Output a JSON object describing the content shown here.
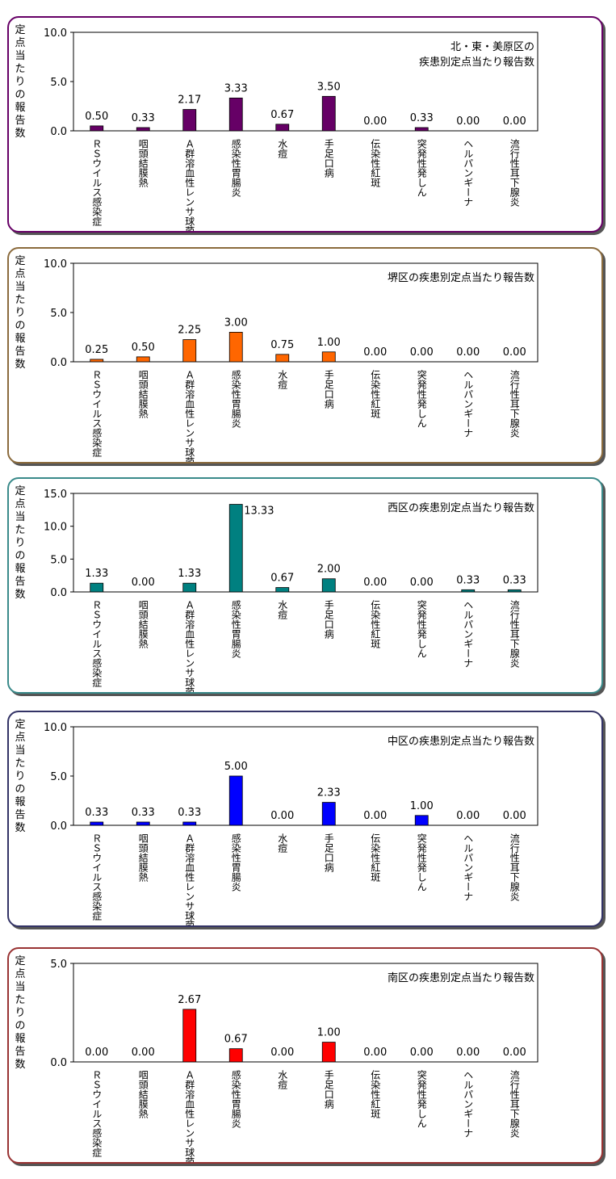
{
  "y_axis_title": "定点当たりの報告数",
  "chart_data": [
    {
      "type": "bar",
      "title": "北・東・美原区の\n疾患別定点当たり報告数",
      "color": "#660066",
      "border_color": "#660066",
      "ylim": [
        0,
        10
      ],
      "yticks": [
        "0.0",
        "5.0",
        "10.0"
      ],
      "categories": [
        "ＲＳウイルス感染症",
        "咽頭結膜熱",
        "Ａ群溶血性レンサ球菌咽頭炎",
        "感染性胃腸炎",
        "水痘",
        "手足口病",
        "伝染性紅斑",
        "突発性発しん",
        "ヘルパンギーナ",
        "流行性耳下腺炎"
      ],
      "values": [
        0.5,
        0.33,
        2.17,
        3.33,
        0.67,
        3.5,
        0.0,
        0.33,
        0.0,
        0.0
      ],
      "labels": [
        "0.50",
        "0.33",
        "2.17",
        "3.33",
        "0.67",
        "3.50",
        "0.00",
        "0.33",
        "0.00",
        "0.00"
      ]
    },
    {
      "type": "bar",
      "title": "堺区の疾患別定点当たり報告数",
      "color": "#ff6600",
      "border_color": "#8b6b3d",
      "ylim": [
        0,
        10
      ],
      "yticks": [
        "0.0",
        "5.0",
        "10.0"
      ],
      "categories": [
        "ＲＳウイルス感染症",
        "咽頭結膜熱",
        "Ａ群溶血性レンサ球菌咽頭炎",
        "感染性胃腸炎",
        "水痘",
        "手足口病",
        "伝染性紅斑",
        "突発性発しん",
        "ヘルパンギーナ",
        "流行性耳下腺炎"
      ],
      "values": [
        0.25,
        0.5,
        2.25,
        3.0,
        0.75,
        1.0,
        0.0,
        0.0,
        0.0,
        0.0
      ],
      "labels": [
        "0.25",
        "0.50",
        "2.25",
        "3.00",
        "0.75",
        "1.00",
        "0.00",
        "0.00",
        "0.00",
        "0.00"
      ]
    },
    {
      "type": "bar",
      "title": "西区の疾患別定点当たり報告数",
      "color": "#008080",
      "border_color": "#3a8a8a",
      "ylim": [
        0,
        15
      ],
      "yticks": [
        "0.0",
        "5.0",
        "10.0",
        "15.0"
      ],
      "categories": [
        "ＲＳウイルス感染症",
        "咽頭結膜熱",
        "Ａ群溶血性レンサ球菌咽頭炎",
        "感染性胃腸炎",
        "水痘",
        "手足口病",
        "伝染性紅斑",
        "突発性発しん",
        "ヘルパンギーナ",
        "流行性耳下腺炎"
      ],
      "values": [
        1.33,
        0.0,
        1.33,
        13.33,
        0.67,
        2.0,
        0.0,
        0.0,
        0.33,
        0.33
      ],
      "labels": [
        "1.33",
        "0.00",
        "1.33",
        "13.33",
        "0.67",
        "2.00",
        "0.00",
        "0.00",
        "0.33",
        "0.33"
      ]
    },
    {
      "type": "bar",
      "title": "中区の疾患別定点当たり報告数",
      "color": "#0000ff",
      "border_color": "#333366",
      "ylim": [
        0,
        10
      ],
      "yticks": [
        "0.0",
        "5.0",
        "10.0"
      ],
      "categories": [
        "ＲＳウイルス感染症",
        "咽頭結膜熱",
        "Ａ群溶血性レンサ球菌咽頭炎",
        "感染性胃腸炎",
        "水痘",
        "手足口病",
        "伝染性紅斑",
        "突発性発しん",
        "ヘルパンギーナ",
        "流行性耳下腺炎"
      ],
      "values": [
        0.33,
        0.33,
        0.33,
        5.0,
        0.0,
        2.33,
        0.0,
        1.0,
        0.0,
        0.0
      ],
      "labels": [
        "0.33",
        "0.33",
        "0.33",
        "5.00",
        "0.00",
        "2.33",
        "0.00",
        "1.00",
        "0.00",
        "0.00"
      ]
    },
    {
      "type": "bar",
      "title": "南区の疾患別定点当たり報告数",
      "color": "#ff0000",
      "border_color": "#993333",
      "ylim": [
        0,
        5
      ],
      "yticks": [
        "0.0",
        "5.0"
      ],
      "categories": [
        "ＲＳウイルス感染症",
        "咽頭結膜熱",
        "Ａ群溶血性レンサ球菌咽頭炎",
        "感染性胃腸炎",
        "水痘",
        "手足口病",
        "伝染性紅斑",
        "突発性発しん",
        "ヘルパンギーナ",
        "流行性耳下腺炎"
      ],
      "values": [
        0.0,
        0.0,
        2.67,
        0.67,
        0.0,
        1.0,
        0.0,
        0.0,
        0.0,
        0.0
      ],
      "labels": [
        "0.00",
        "0.00",
        "2.67",
        "0.67",
        "0.00",
        "1.00",
        "0.00",
        "0.00",
        "0.00",
        "0.00"
      ]
    }
  ]
}
